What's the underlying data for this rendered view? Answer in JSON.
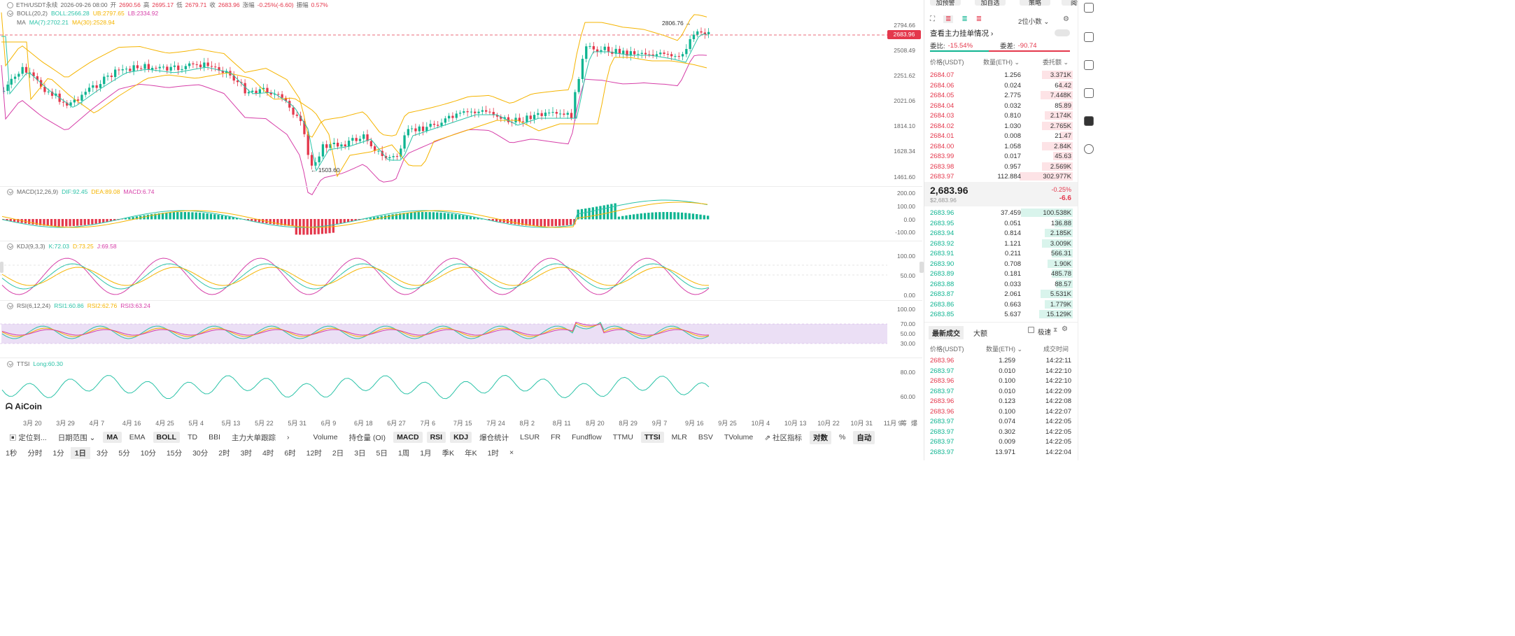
{
  "header": {
    "symbol": "ETH/USDT永续",
    "date": "2026-09-26 08:00",
    "open_label": "开",
    "open": "2690.56",
    "high_label": "高",
    "high": "2695.17",
    "low_label": "低",
    "low": "2679.71",
    "close_label": "收",
    "close": "2683.96",
    "change_label": "涨幅",
    "change": "-0.25%(-6.60)",
    "amp_label": "振幅",
    "amp": "0.57%"
  },
  "boll": {
    "title": "BOLL(20,2)",
    "mid": "BOLL:2566.28",
    "ub": "UB:2797.65",
    "lb": "LB:2334.92"
  },
  "ma": {
    "title": "MA",
    "ma7": "MA(7):2702.21",
    "ma30": "MA(30):2528.94"
  },
  "macd": {
    "title": "MACD(12,26,9)",
    "dif": "DIF:92.45",
    "dea": "DEA:89.08",
    "macd": "MACD:6.74"
  },
  "kdj": {
    "title": "KDJ(9,3,3)",
    "k": "K:72.03",
    "d": "D:73.25",
    "j": "J:69.58"
  },
  "rsi": {
    "title": "RSI(6,12,24)",
    "r1": "RSI1:60.86",
    "r2": "RSI2:62.76",
    "r3": "RSI3:63.24"
  },
  "ttsi": {
    "title": "TTSI",
    "long": "Long:60.30"
  },
  "logo": "AiCoin",
  "price_axis": [
    "2794.66",
    "2508.49",
    "2251.62",
    "2021.06",
    "1814.10",
    "1628.34",
    "1461.60"
  ],
  "current_price_tag": "2683.96",
  "macd_axis": [
    "200.00",
    "100.00",
    "0.00",
    "-100.00"
  ],
  "kdj_axis": [
    "100.00",
    "50.00",
    "0.00"
  ],
  "rsi_axis": [
    "100.00",
    "70.00",
    "50.00",
    "30.00"
  ],
  "ttsi_axis": [
    "80.00",
    "60.00"
  ],
  "annotations": {
    "high": "2806.76",
    "low": "1503.60"
  },
  "x_axis": [
    "3月 20",
    "3月 29",
    "4月 7",
    "4月 16",
    "4月 25",
    "5月 4",
    "5月 13",
    "5月 22",
    "5月 31",
    "6月 9",
    "6月 18",
    "6月 27",
    "7月 6",
    "7月 15",
    "7月 24",
    "8月 2",
    "8月 11",
    "8月 20",
    "8月 29",
    "9月 7",
    "9月 16",
    "9月 25",
    "10月 4",
    "10月 13",
    "10月 22",
    "10月 31",
    "11月 9"
  ],
  "x_axis_right": [
    "筹",
    "爆"
  ],
  "toolbar": {
    "items": [
      "定位到...",
      "日期范围",
      "MA",
      "EMA",
      "BOLL",
      "TD",
      "BBI",
      "主力大单跟踪",
      "Volume",
      "持仓量 (OI)",
      "MACD",
      "RSI",
      "KDJ",
      "爆仓统计",
      "LSUR",
      "FR",
      "Fundflow",
      "TTMU",
      "TTSI",
      "MLR",
      "BSV",
      "TVolume",
      "社区指标",
      "对数",
      "%",
      "自动"
    ]
  },
  "timeframes": [
    "1秒",
    "分时",
    "1分",
    "1日",
    "3分",
    "5分",
    "10分",
    "15分",
    "30分",
    "2时",
    "3时",
    "4时",
    "6时",
    "12时",
    "2日",
    "3日",
    "5日",
    "1周",
    "1月",
    "季K",
    "年K",
    "1时"
  ],
  "orderbook": {
    "top_buttons": [
      "加预警",
      "加自选",
      "策略",
      "阅读"
    ],
    "precision": "2位小数",
    "title": "查看主力挂单情况",
    "ratio_label": "委比:",
    "ratio": "-15.54%",
    "diff_label": "委差:",
    "diff": "-90.74",
    "headers": [
      "价格(USDT)",
      "数量(ETH)",
      "委托额"
    ],
    "asks": [
      [
        "2684.07",
        "1.256",
        "3.371K"
      ],
      [
        "2684.06",
        "0.024",
        "64.42"
      ],
      [
        "2684.05",
        "2.775",
        "7.448K"
      ],
      [
        "2684.04",
        "0.032",
        "85.89"
      ],
      [
        "2684.03",
        "0.810",
        "2.174K"
      ],
      [
        "2684.02",
        "1.030",
        "2.765K"
      ],
      [
        "2684.01",
        "0.008",
        "21.47"
      ],
      [
        "2684.00",
        "1.058",
        "2.84K"
      ],
      [
        "2683.99",
        "0.017",
        "45.63"
      ],
      [
        "2683.98",
        "0.957",
        "2.569K"
      ],
      [
        "2683.97",
        "112.884",
        "302.977K"
      ]
    ],
    "last_price": "2,683.96",
    "last_usd": "$2,683.96",
    "last_pct": "-0.25%",
    "last_chg": "-6.6",
    "bids": [
      [
        "2683.96",
        "37.459",
        "100.538K"
      ],
      [
        "2683.95",
        "0.051",
        "136.88"
      ],
      [
        "2683.94",
        "0.814",
        "2.185K"
      ],
      [
        "2683.92",
        "1.121",
        "3.009K"
      ],
      [
        "2683.91",
        "0.211",
        "566.31"
      ],
      [
        "2683.90",
        "0.708",
        "1.90K"
      ],
      [
        "2683.89",
        "0.181",
        "485.78"
      ],
      [
        "2683.88",
        "0.033",
        "88.57"
      ],
      [
        "2683.87",
        "2.061",
        "5.531K"
      ],
      [
        "2683.86",
        "0.663",
        "1.779K"
      ],
      [
        "2683.85",
        "5.637",
        "15.129K"
      ]
    ]
  },
  "trades": {
    "tabs": [
      "最新成交",
      "大额"
    ],
    "fast": "极速",
    "headers": [
      "价格(USDT)",
      "数量(ETH)",
      "成交时间"
    ],
    "rows": [
      [
        "2683.96",
        "1.259",
        "14:22:11",
        "red"
      ],
      [
        "2683.97",
        "0.010",
        "14:22:10",
        "green"
      ],
      [
        "2683.96",
        "0.100",
        "14:22:10",
        "red"
      ],
      [
        "2683.97",
        "0.010",
        "14:22:09",
        "green"
      ],
      [
        "2683.96",
        "0.123",
        "14:22:08",
        "red"
      ],
      [
        "2683.96",
        "0.100",
        "14:22:07",
        "red"
      ],
      [
        "2683.97",
        "0.074",
        "14:22:05",
        "green"
      ],
      [
        "2683.97",
        "0.302",
        "14:22:05",
        "green"
      ],
      [
        "2683.97",
        "0.009",
        "14:22:05",
        "green"
      ],
      [
        "2683.97",
        "13.971",
        "14:22:04",
        "green"
      ]
    ]
  },
  "colors": {
    "up": "#0fb491",
    "down": "#e4384c",
    "boll_band": "#f5b400",
    "ma7": "#2bc3a8",
    "ma30": "#f5b400",
    "lb": "#d63ea8",
    "rsi_band": "#e9dcf4"
  }
}
